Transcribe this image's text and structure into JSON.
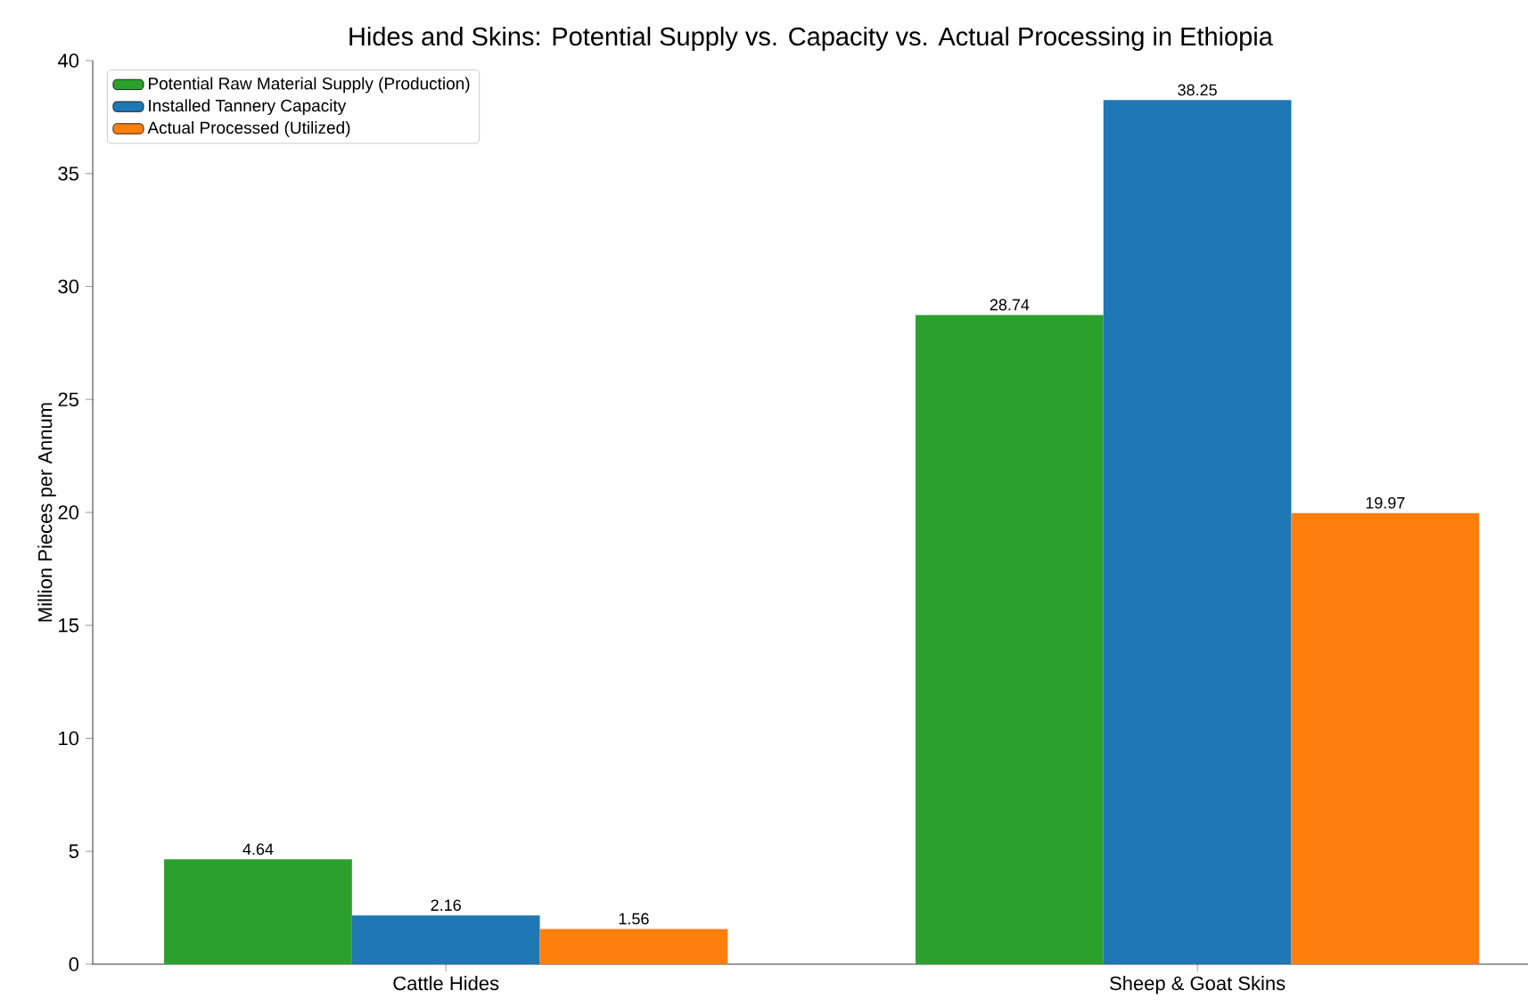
{
  "chart_data": {
    "type": "bar",
    "title": "Hides and Skins: Potential Supply vs. Capacity vs. Actual Processing in Ethiopia",
    "ylabel": "Million Pieces per Annum",
    "categories": [
      "Cattle Hides",
      "Sheep & Goat Skins"
    ],
    "series": [
      {
        "name": "Potential Raw Material Supply (Production)",
        "color": "#2ca02c",
        "values": [
          4.64,
          28.74
        ]
      },
      {
        "name": "Installed Tannery Capacity",
        "color": "#1f77b4",
        "values": [
          2.16,
          38.25
        ]
      },
      {
        "name": "Actual Processed (Utilized)",
        "color": "#ff7f0e",
        "values": [
          1.56,
          19.97
        ]
      }
    ],
    "ylim": [
      0,
      40
    ],
    "yticks": [
      0,
      5,
      10,
      15,
      20,
      25,
      30,
      35,
      40
    ],
    "data_labels": true,
    "legend": "top left",
    "grid": false
  }
}
